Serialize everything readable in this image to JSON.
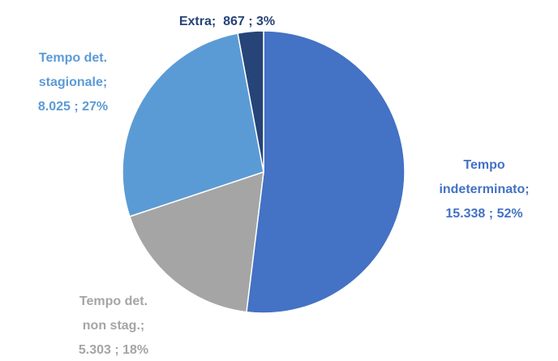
{
  "chart_data": {
    "type": "pie",
    "categories": [
      "Tempo indeterminato;",
      "Tempo det. non stag.;",
      "Tempo det. stagionale;",
      "Extra;"
    ],
    "values": [
      15338,
      5303,
      8025,
      867
    ],
    "value_labels": [
      "15.338",
      "5.303",
      "8.025",
      "867"
    ],
    "percents": [
      {
        "value": 52,
        "label": "52%"
      },
      {
        "value": 18,
        "label": "18%"
      },
      {
        "value": 27,
        "label": "27%"
      },
      {
        "value": 3,
        "label": "3%"
      }
    ],
    "separator": ";",
    "colors": [
      "#4472c4",
      "#a5a5a5",
      "#5b9bd5",
      "#264478"
    ]
  }
}
